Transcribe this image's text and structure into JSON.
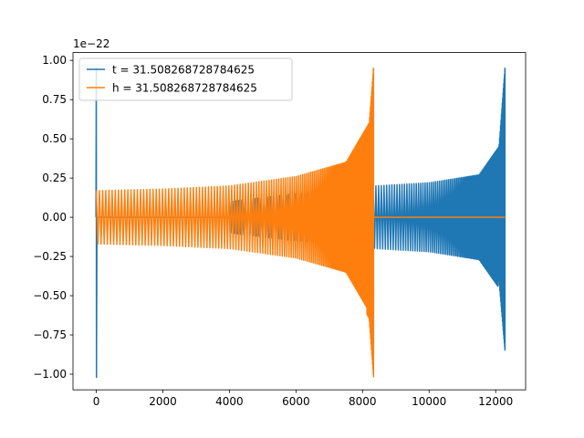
{
  "chart_data": {
    "type": "line",
    "title": "",
    "xlabel": "",
    "ylabel": "",
    "y_offset_label": "1e−22",
    "xlim": [
      -700,
      12900
    ],
    "ylim": [
      -1.1,
      1.05
    ],
    "x_ticks": [
      0,
      2000,
      4000,
      6000,
      8000,
      10000,
      12000
    ],
    "x_tick_labels": [
      "0",
      "2000",
      "4000",
      "6000",
      "8000",
      "10000",
      "12000"
    ],
    "y_ticks": [
      -1.0,
      -0.75,
      -0.5,
      -0.25,
      0.0,
      0.25,
      0.5,
      0.75,
      1.0
    ],
    "y_tick_labels": [
      "−1.00",
      "−0.75",
      "−0.50",
      "−0.25",
      "0.00",
      "0.25",
      "0.50",
      "0.75",
      "1.00"
    ],
    "grid": false,
    "legend_position": "upper-left",
    "series": [
      {
        "name": "t = 31.508268728784625",
        "color": "#1f77b4",
        "description_points": {
          "x_start": 0,
          "x_end": 12280,
          "initial_spike": {
            "x": 0,
            "min": -1.02,
            "max": 0.95
          },
          "flat_zero_from": 0,
          "flat_zero_to": 4000,
          "envelope": [
            [
              4000,
              0.1
            ],
            [
              6000,
              0.15
            ],
            [
              8000,
              0.18
            ],
            [
              8400,
              0.2
            ],
            [
              10000,
              0.22
            ],
            [
              11500,
              0.27
            ],
            [
              12100,
              0.45
            ],
            [
              12280,
              0.95
            ]
          ],
          "envelope_min_end": -0.85
        }
      },
      {
        "name": "h = 31.508268728784625",
        "color": "#ff7f0e",
        "description_points": {
          "x_start": 0,
          "x_end": 12280,
          "envelope": [
            [
              0,
              0.17
            ],
            [
              2000,
              0.18
            ],
            [
              4000,
              0.2
            ],
            [
              6000,
              0.26
            ],
            [
              7500,
              0.35
            ],
            [
              8200,
              0.6
            ],
            [
              8330,
              0.95
            ]
          ],
          "envelope_min_end": -1.02,
          "flat_zero_from": 8330,
          "flat_zero_to": 12280
        }
      }
    ]
  }
}
